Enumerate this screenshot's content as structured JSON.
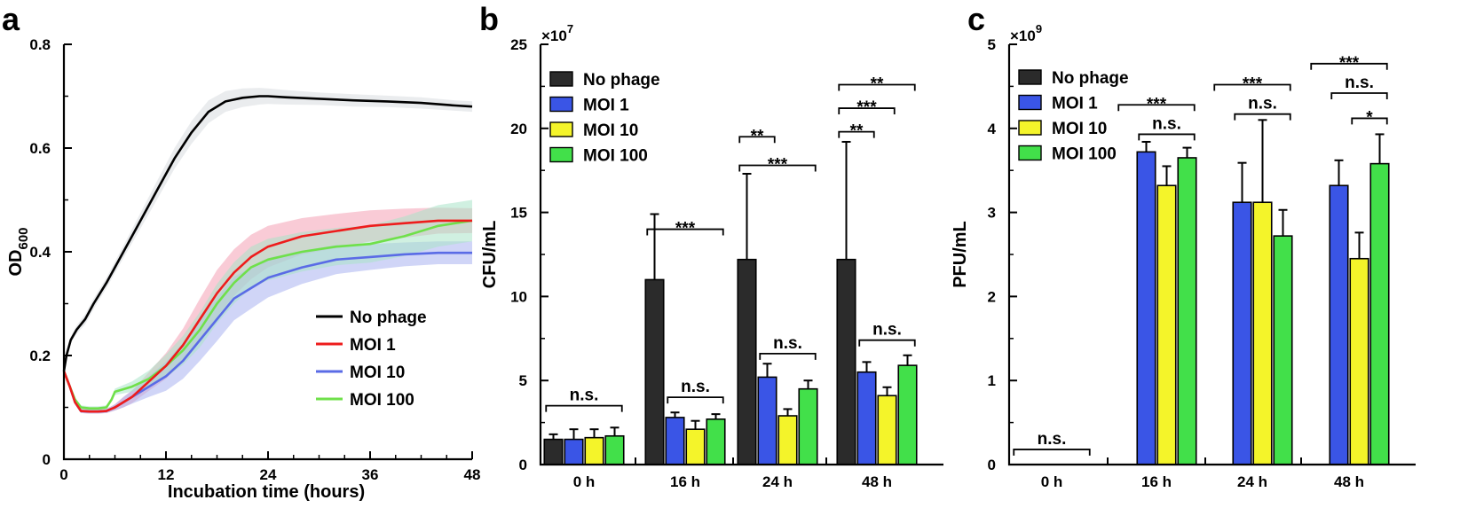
{
  "chart_data": [
    {
      "panel": "a",
      "type": "line",
      "xlabel": "Incubation time (hours)",
      "ylabel": "OD600",
      "ylabel_main": "OD",
      "ylabel_sub": "600",
      "xlim": [
        0,
        48
      ],
      "ylim": [
        0,
        0.8
      ],
      "x_ticks": [
        "0",
        "12",
        "24",
        "36",
        "48"
      ],
      "y_ticks": [
        "0",
        "0.2",
        "0.4",
        "0.6",
        "0.8"
      ],
      "legend_position": "bottom-right",
      "series": [
        {
          "name": "No phage",
          "color": "#000000",
          "band_color": "#d9dce0",
          "x": [
            0,
            0.3,
            0.8,
            1.5,
            2.5,
            3.5,
            5,
            7,
            9,
            11,
            13,
            15,
            17,
            19,
            21,
            23,
            24,
            26,
            30,
            34,
            38,
            42,
            46,
            48
          ],
          "y": [
            0.17,
            0.2,
            0.23,
            0.25,
            0.27,
            0.3,
            0.34,
            0.4,
            0.46,
            0.52,
            0.58,
            0.63,
            0.67,
            0.69,
            0.697,
            0.7,
            0.7,
            0.698,
            0.695,
            0.692,
            0.69,
            0.687,
            0.682,
            0.68
          ],
          "band": [
            0.006,
            0.006,
            0.006,
            0.008,
            0.01,
            0.01,
            0.01,
            0.012,
            0.015,
            0.018,
            0.02,
            0.022,
            0.022,
            0.02,
            0.018,
            0.016,
            0.015,
            0.014,
            0.012,
            0.012,
            0.011,
            0.011,
            0.01,
            0.01
          ]
        },
        {
          "name": "MOI 1",
          "color": "#ee1c1c",
          "band_color": "#f4a0b4",
          "x": [
            0,
            0.7,
            1.3,
            2,
            3,
            4,
            5,
            6,
            7,
            8,
            10,
            12,
            14,
            16,
            18,
            20,
            22,
            24,
            28,
            32,
            36,
            40,
            44,
            48
          ],
          "y": [
            0.17,
            0.14,
            0.11,
            0.093,
            0.092,
            0.092,
            0.093,
            0.1,
            0.11,
            0.12,
            0.15,
            0.18,
            0.22,
            0.27,
            0.32,
            0.36,
            0.39,
            0.41,
            0.43,
            0.44,
            0.45,
            0.455,
            0.46,
            0.46
          ],
          "band": [
            0.004,
            0.004,
            0.004,
            0.004,
            0.004,
            0.004,
            0.004,
            0.006,
            0.01,
            0.012,
            0.018,
            0.025,
            0.032,
            0.04,
            0.045,
            0.045,
            0.043,
            0.04,
            0.035,
            0.033,
            0.03,
            0.028,
            0.025,
            0.024
          ]
        },
        {
          "name": "MOI 10",
          "color": "#5a6be6",
          "band_color": "#aab3f0",
          "x": [
            0,
            0.7,
            1.3,
            2,
            3,
            4,
            5,
            6,
            7,
            8,
            10,
            12,
            14,
            16,
            18,
            20,
            22,
            24,
            28,
            32,
            36,
            40,
            44,
            48
          ],
          "y": [
            0.17,
            0.14,
            0.11,
            0.093,
            0.092,
            0.092,
            0.093,
            0.1,
            0.11,
            0.12,
            0.14,
            0.16,
            0.19,
            0.23,
            0.27,
            0.31,
            0.33,
            0.35,
            0.37,
            0.385,
            0.39,
            0.395,
            0.398,
            0.398
          ],
          "band": [
            0.004,
            0.004,
            0.004,
            0.004,
            0.004,
            0.004,
            0.004,
            0.006,
            0.01,
            0.013,
            0.02,
            0.028,
            0.035,
            0.04,
            0.042,
            0.042,
            0.04,
            0.038,
            0.032,
            0.028,
            0.025,
            0.023,
            0.022,
            0.022
          ]
        },
        {
          "name": "MOI 100",
          "color": "#6fe04a",
          "band_color": "#a9e4c8",
          "x": [
            0,
            0.7,
            1.3,
            2,
            3,
            4,
            5,
            5.6,
            6,
            7,
            8,
            10,
            12,
            14,
            16,
            18,
            20,
            22,
            24,
            28,
            32,
            36,
            40,
            44,
            48
          ],
          "y": [
            0.17,
            0.14,
            0.115,
            0.1,
            0.098,
            0.098,
            0.1,
            0.115,
            0.13,
            0.135,
            0.14,
            0.155,
            0.18,
            0.21,
            0.25,
            0.3,
            0.34,
            0.37,
            0.385,
            0.4,
            0.41,
            0.415,
            0.43,
            0.45,
            0.46
          ],
          "band": [
            0.004,
            0.004,
            0.004,
            0.004,
            0.004,
            0.004,
            0.004,
            0.004,
            0.006,
            0.008,
            0.01,
            0.016,
            0.022,
            0.028,
            0.034,
            0.038,
            0.04,
            0.04,
            0.04,
            0.038,
            0.036,
            0.036,
            0.038,
            0.04,
            0.04
          ]
        }
      ]
    },
    {
      "panel": "b",
      "type": "bar",
      "ylabel": "CFU/mL",
      "multiplier_base": "×10",
      "multiplier_exp": "7",
      "ylim": [
        0,
        25
      ],
      "y_ticks": [
        "0",
        "5",
        "10",
        "15",
        "20",
        "25"
      ],
      "categories": [
        "0 h",
        "16 h",
        "24 h",
        "48 h"
      ],
      "legend_position": "top-left",
      "series": [
        {
          "name": "No phage",
          "color": "#2b2b2b",
          "values": [
            1.5,
            11.0,
            12.2,
            12.2
          ],
          "errors": [
            0.3,
            3.9,
            5.1,
            7.0
          ]
        },
        {
          "name": "MOI 1",
          "color": "#3a55e6",
          "values": [
            1.5,
            2.8,
            5.2,
            5.5
          ],
          "errors": [
            0.6,
            0.3,
            0.8,
            0.6
          ]
        },
        {
          "name": "MOI 10",
          "color": "#f4f42a",
          "values": [
            1.6,
            2.1,
            2.9,
            4.1
          ],
          "errors": [
            0.5,
            0.5,
            0.4,
            0.5
          ]
        },
        {
          "name": "MOI 100",
          "color": "#42e04a",
          "values": [
            1.7,
            2.7,
            4.5,
            5.9
          ],
          "errors": [
            0.5,
            0.3,
            0.5,
            0.6
          ]
        }
      ],
      "significance": [
        {
          "label": "n.s.",
          "group": 0,
          "from": 0,
          "to": 3,
          "y": 3.5
        },
        {
          "label": "***",
          "group": 1,
          "from": 0,
          "to": 3,
          "y": 14.0
        },
        {
          "label": "n.s.",
          "group": 1,
          "from": 1,
          "to": 3,
          "y": 4.0
        },
        {
          "label": "**",
          "group": 2,
          "from": 0,
          "to": 1,
          "y": 19.5
        },
        {
          "label": "***",
          "group": 2,
          "from": 0,
          "to": 3,
          "y": 17.8
        },
        {
          "label": "n.s.",
          "group": 2,
          "from": 1,
          "to": 3,
          "y": 6.6
        },
        {
          "label": "**",
          "group": 3,
          "from": 0,
          "to": 3,
          "y": 22.6
        },
        {
          "label": "***",
          "group": 3,
          "from": 0,
          "to": 2,
          "y": 21.2
        },
        {
          "label": "**",
          "group": 3,
          "from": 0,
          "to": 1,
          "y": 19.8
        },
        {
          "label": "n.s.",
          "group": 3,
          "from": 1,
          "to": 3,
          "y": 7.4
        }
      ]
    },
    {
      "panel": "c",
      "type": "bar",
      "ylabel": "PFU/mL",
      "multiplier_base": "×10",
      "multiplier_exp": "9",
      "ylim": [
        0,
        5
      ],
      "y_ticks": [
        "0",
        "1",
        "2",
        "3",
        "4",
        "5"
      ],
      "categories": [
        "0 h",
        "16 h",
        "24 h",
        "48 h"
      ],
      "legend_position": "top-left",
      "series": [
        {
          "name": "No phage",
          "color": "#2b2b2b",
          "values": [
            0,
            0,
            0,
            0
          ],
          "errors": [
            0,
            0,
            0,
            0
          ]
        },
        {
          "name": "MOI 1",
          "color": "#3a55e6",
          "values": [
            0,
            3.72,
            3.12,
            3.32
          ],
          "errors": [
            0,
            0.12,
            0.47,
            0.3
          ]
        },
        {
          "name": "MOI 10",
          "color": "#f4f42a",
          "values": [
            0,
            3.32,
            3.12,
            2.45
          ],
          "errors": [
            0,
            0.23,
            0.98,
            0.31
          ]
        },
        {
          "name": "MOI 100",
          "color": "#42e04a",
          "values": [
            0,
            3.65,
            2.72,
            3.58
          ],
          "errors": [
            0,
            0.12,
            0.31,
            0.35
          ]
        }
      ],
      "significance": [
        {
          "label": "n.s.",
          "group": 0,
          "from": 0,
          "to": 3,
          "y": 0.18
        },
        {
          "label": "***",
          "group": 1,
          "from": 0,
          "to": 3,
          "y": 4.28
        },
        {
          "label": "n.s.",
          "group": 1,
          "from": 1,
          "to": 3,
          "y": 3.93
        },
        {
          "label": "***",
          "group": 2,
          "from": 0,
          "to": 3,
          "y": 4.52
        },
        {
          "label": "n.s.",
          "group": 2,
          "from": 1,
          "to": 3,
          "y": 4.17
        },
        {
          "label": "***",
          "group": 3,
          "from": 0,
          "to": 3,
          "y": 4.77
        },
        {
          "label": "n.s.",
          "group": 3,
          "from": 1,
          "to": 3,
          "y": 4.42
        },
        {
          "label": "*",
          "group": 3,
          "from": 2,
          "to": 3,
          "y": 4.12
        }
      ]
    }
  ]
}
